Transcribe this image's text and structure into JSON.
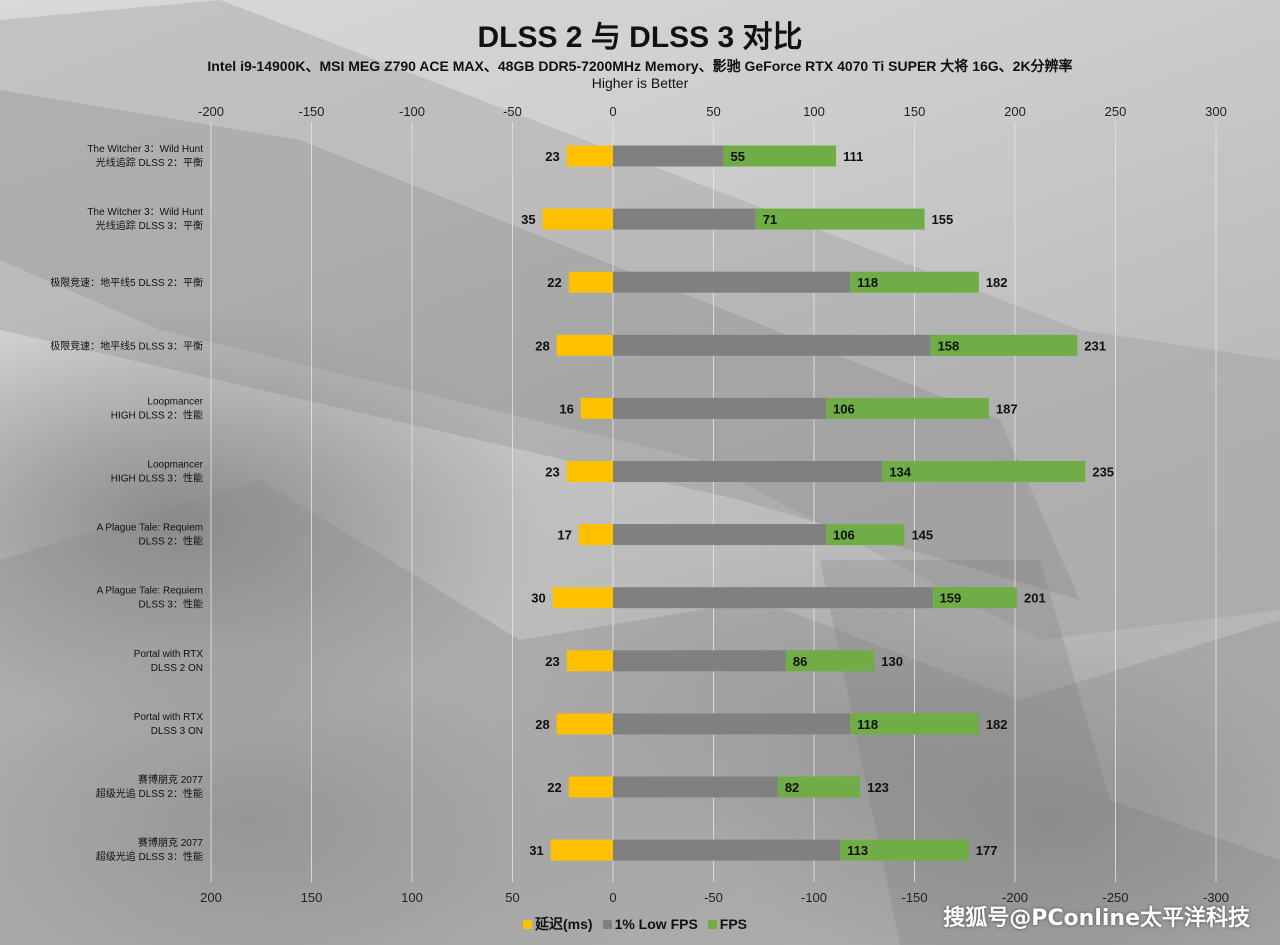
{
  "header": {
    "title": "DLSS 2 与 DLSS 3 对比",
    "subtitle": "Intel i9-14900K、MSI MEG Z790 ACE MAX、48GB DDR5-7200MHz Memory、影驰 GeForce RTX 4070 Ti SUPER 大将 16G、2K分辨率",
    "note": "Higher is Better"
  },
  "colors": {
    "latency": "#FFC000",
    "low_fps": "#808080",
    "fps": "#70AD47",
    "gridline": "#e6e6e6",
    "tick_text": "#222222"
  },
  "legend": {
    "latency": "延迟(ms)",
    "low_fps": "1% Low FPS",
    "fps": "FPS"
  },
  "watermark": "搜狐号@PConline太平洋科技",
  "chart_data": {
    "type": "bar",
    "orientation": "horizontal",
    "stacked": true,
    "title": "DLSS 2 与 DLSS 3 对比",
    "top_axis_ticks": [
      "-200",
      "-150",
      "-100",
      "-50",
      "0",
      "50",
      "100",
      "150",
      "200",
      "250",
      "300"
    ],
    "bottom_axis_ticks": [
      "200",
      "150",
      "100",
      "50",
      "0",
      "-50",
      "-100",
      "-150",
      "-200",
      "-250",
      "-300"
    ],
    "xlim": [
      -200,
      300
    ],
    "legend_position": "bottom",
    "categories": [
      {
        "line1": "The Witcher 3：Wild Hunt",
        "line2": "光线追踪 DLSS 2：平衡"
      },
      {
        "line1": "The Witcher 3：Wild Hunt",
        "line2": "光线追踪 DLSS 3：平衡"
      },
      {
        "line1": "极限竞速：地平线5 DLSS 2：平衡",
        "line2": ""
      },
      {
        "line1": "极限竞速：地平线5 DLSS 3：平衡",
        "line2": ""
      },
      {
        "line1": "Loopmancer",
        "line2": "HIGH DLSS 2：性能"
      },
      {
        "line1": "Loopmancer",
        "line2": "HIGH DLSS 3：性能"
      },
      {
        "line1": "A Plague Tale: Requiem",
        "line2": "DLSS 2：性能"
      },
      {
        "line1": "A Plague Tale: Requiem",
        "line2": "DLSS 3：性能"
      },
      {
        "line1": "Portal with RTX",
        "line2": "DLSS 2 ON"
      },
      {
        "line1": "Portal with RTX",
        "line2": "DLSS 3 ON"
      },
      {
        "line1": "赛博朋克 2077",
        "line2": "超级光追 DLSS 2：性能"
      },
      {
        "line1": "赛博朋克 2077",
        "line2": "超级光追 DLSS 3：性能"
      }
    ],
    "series": [
      {
        "name": "延迟(ms)",
        "key": "latency",
        "direction": "negative",
        "values": [
          23,
          35,
          22,
          28,
          16,
          23,
          17,
          30,
          23,
          28,
          22,
          31
        ]
      },
      {
        "name": "1% Low FPS",
        "key": "low_fps",
        "direction": "positive",
        "values": [
          55,
          71,
          118,
          158,
          106,
          134,
          106,
          159,
          86,
          118,
          82,
          113
        ]
      },
      {
        "name": "FPS",
        "key": "fps",
        "direction": "positive",
        "values": [
          111,
          155,
          182,
          231,
          187,
          235,
          145,
          201,
          130,
          182,
          123,
          177
        ]
      }
    ]
  }
}
